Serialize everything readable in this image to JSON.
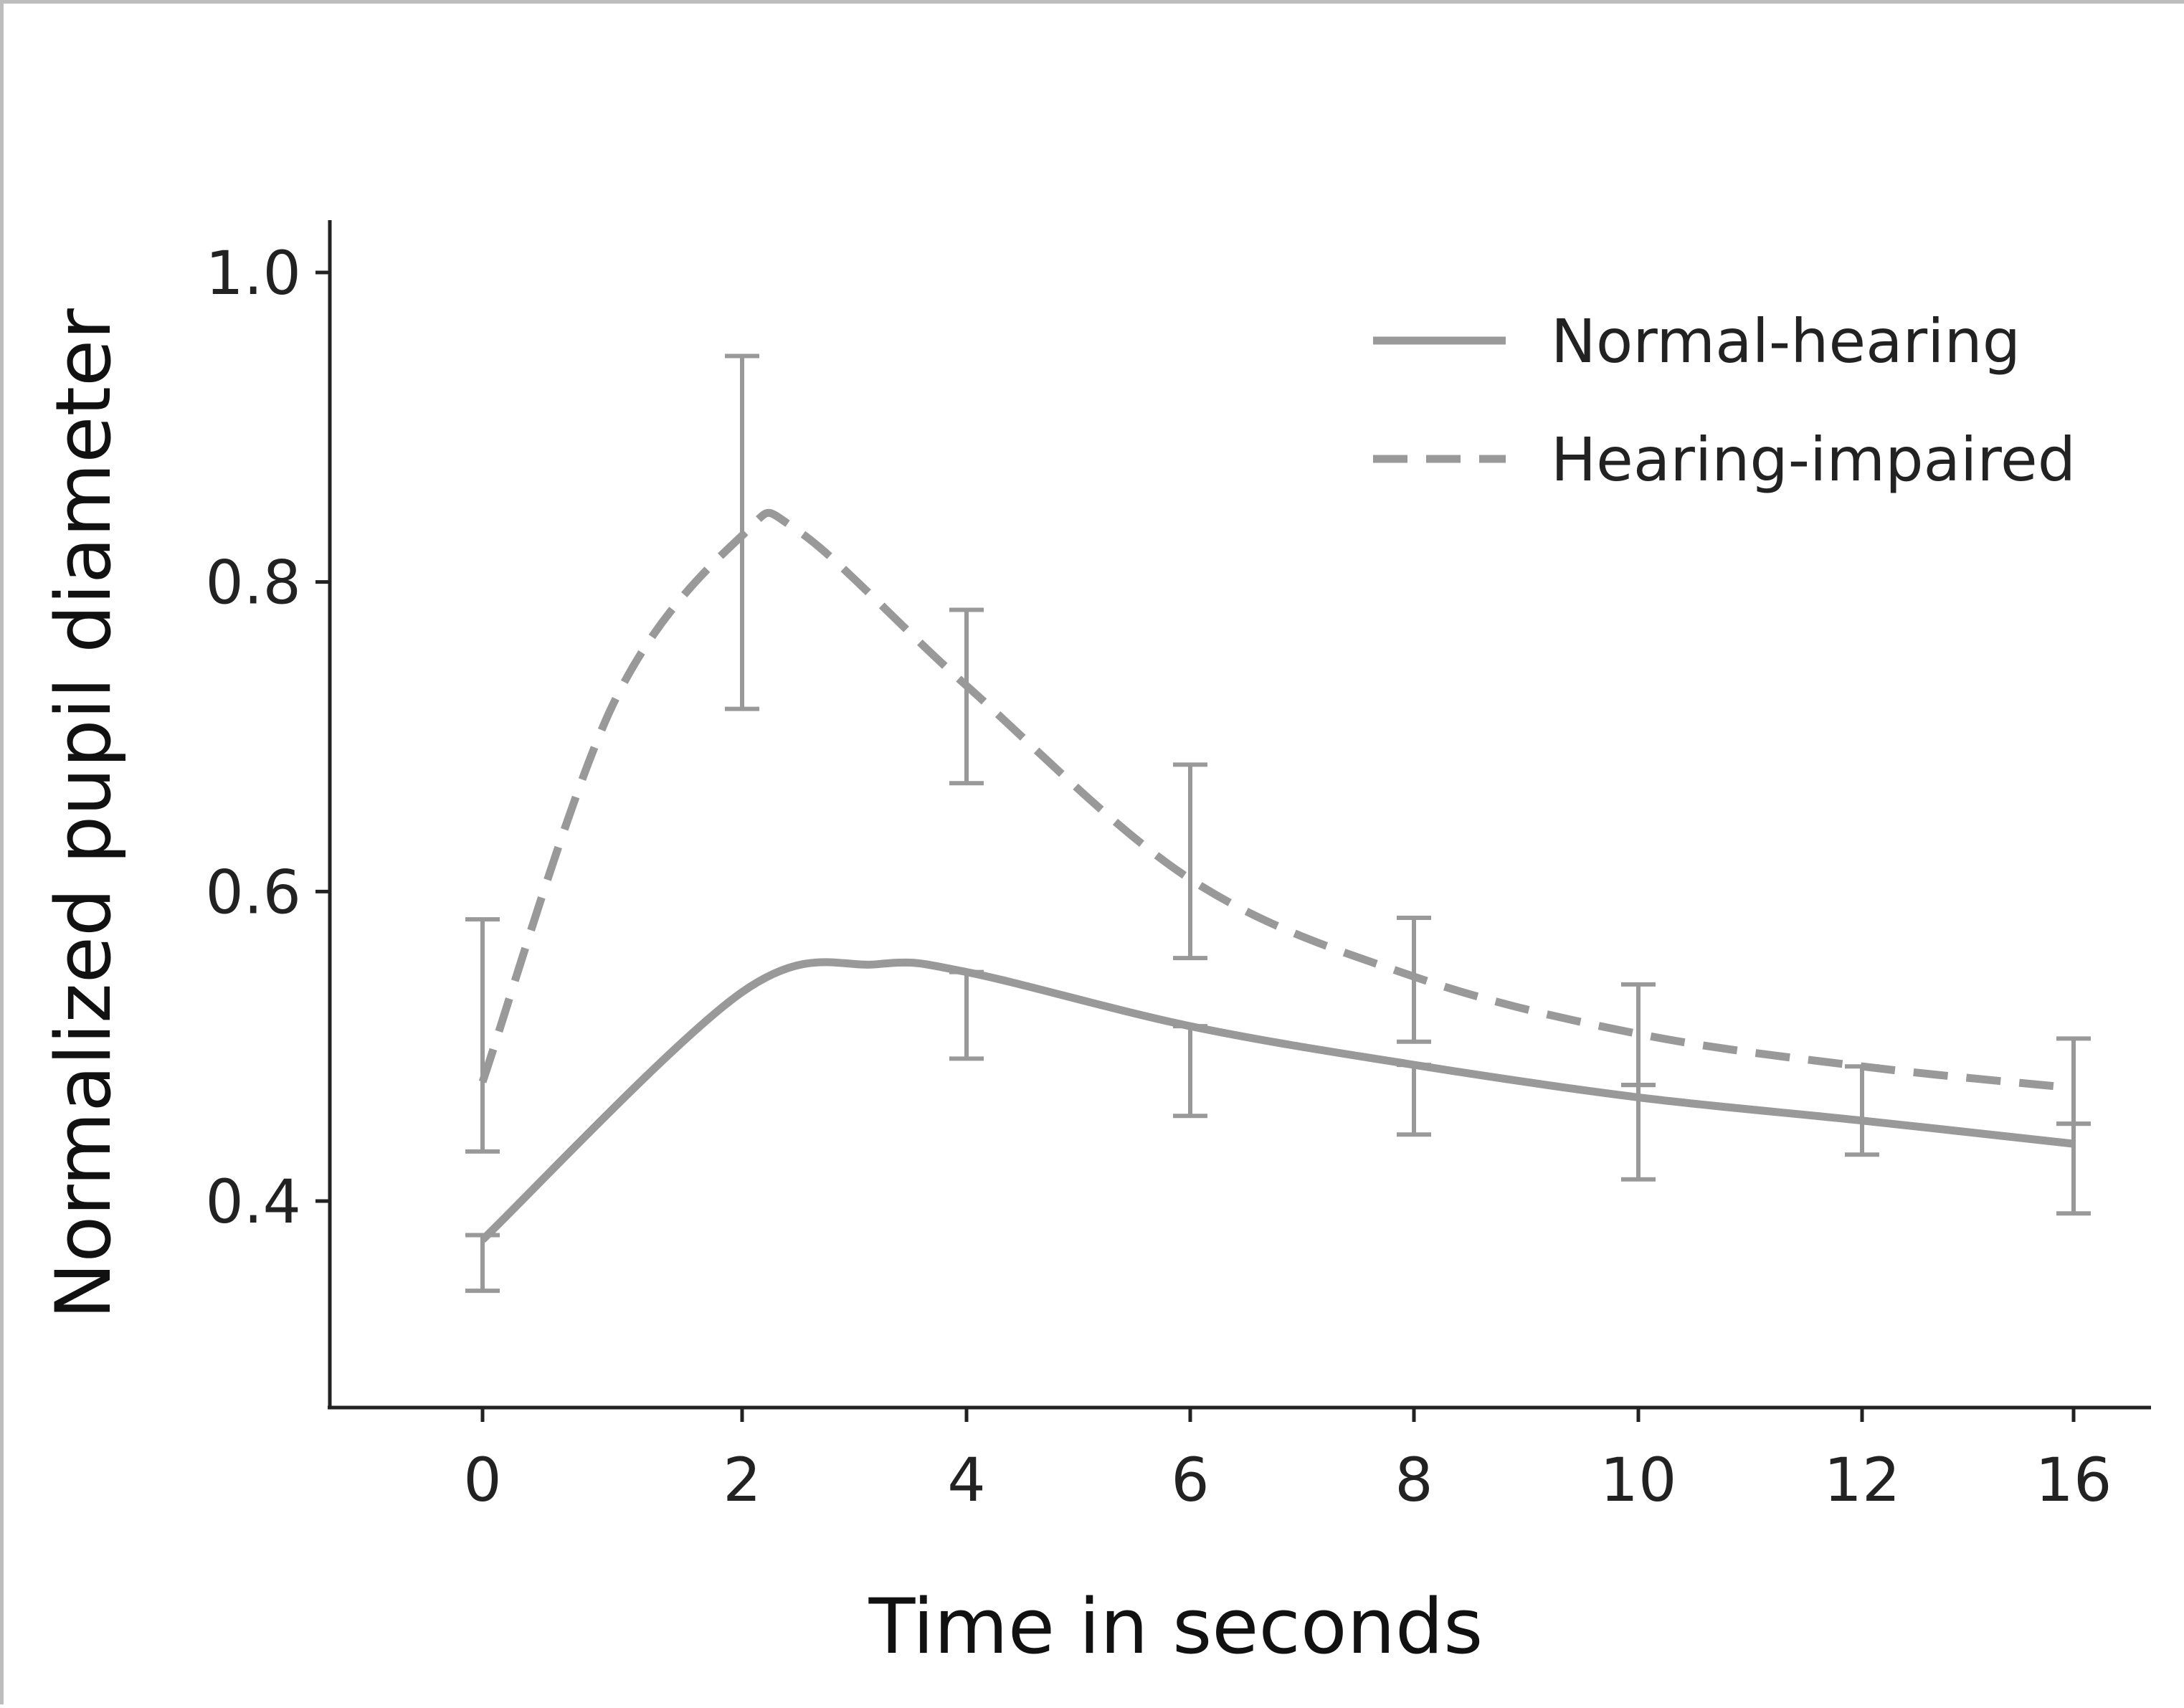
{
  "chart_data": {
    "type": "line",
    "title": "",
    "xlabel": "Time in seconds",
    "ylabel": "Normalized pupil diameter",
    "x_ticks": [
      "0",
      "2",
      "4",
      "6",
      "8",
      "10",
      "12",
      "16"
    ],
    "y_ticks": [
      "0.4",
      "0.6",
      "0.8",
      "1.0"
    ],
    "ylim": [
      0.32,
      1.04
    ],
    "grid": false,
    "legend_position": "top-right",
    "line_color": "#999999",
    "axis_color": "#222222",
    "series": [
      {
        "name": "Normal-hearing",
        "style": "solid",
        "points": [
          0,
          0.375,
          2,
          0.535,
          3.2,
          0.553,
          4,
          0.548,
          6,
          0.513,
          8,
          0.488,
          10,
          0.467,
          12,
          0.452,
          16,
          0.437
        ],
        "error_bars": [
          {
            "x": 0,
            "low": 0.342,
            "high": 0.378
          },
          {
            "x": 4,
            "low": 0.492,
            "high": 0.548
          },
          {
            "x": 6,
            "low": 0.455,
            "high": 0.513
          },
          {
            "x": 8,
            "low": 0.443,
            "high": 0.488
          },
          {
            "x": 10,
            "low": 0.414,
            "high": 0.475
          },
          {
            "x": 12,
            "low": 0.43,
            "high": 0.487
          },
          {
            "x": 16,
            "low": 0.392,
            "high": 0.45
          }
        ]
      },
      {
        "name": "Hearing-impaired",
        "style": "dashed",
        "points": [
          0,
          0.477,
          1,
          0.72,
          2,
          0.83,
          2.5,
          0.833,
          4,
          0.733,
          6,
          0.608,
          8,
          0.545,
          10,
          0.508,
          12,
          0.487,
          16,
          0.473
        ],
        "error_bars": [
          {
            "x": 0,
            "low": 0.432,
            "high": 0.582
          },
          {
            "x": 2,
            "low": 0.718,
            "high": 0.946
          },
          {
            "x": 4,
            "low": 0.67,
            "high": 0.782
          },
          {
            "x": 6,
            "low": 0.557,
            "high": 0.682
          },
          {
            "x": 8,
            "low": 0.503,
            "high": 0.583
          },
          {
            "x": 10,
            "low": 0.475,
            "high": 0.54
          },
          {
            "x": 16,
            "low": 0.45,
            "high": 0.505
          }
        ]
      }
    ]
  }
}
